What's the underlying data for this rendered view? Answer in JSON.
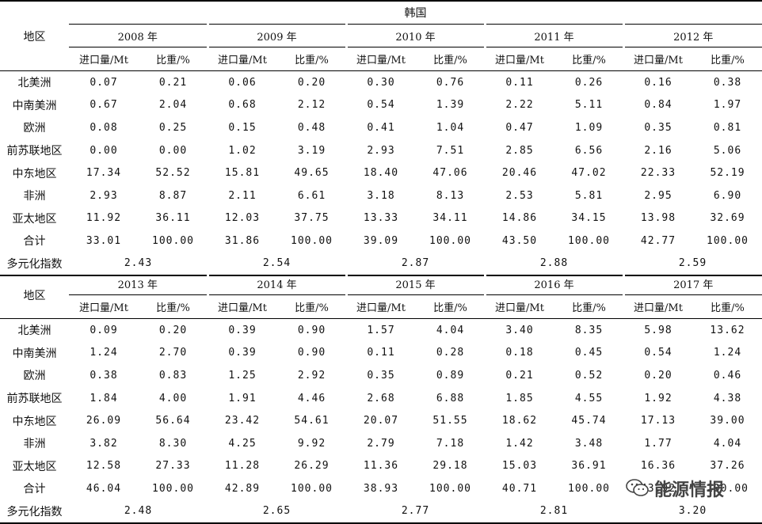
{
  "table1": {
    "country": "韩国",
    "region_header": "地区",
    "years": [
      "2008 年",
      "2009 年",
      "2010 年",
      "2011 年",
      "2012 年"
    ],
    "col_import": "进口量/Mt",
    "col_share": "比重/%",
    "rows": [
      {
        "region": "北美洲",
        "values": [
          "0.07",
          "0.21",
          "0.06",
          "0.20",
          "0.30",
          "0.76",
          "0.11",
          "0.26",
          "0.16",
          "0.38"
        ]
      },
      {
        "region": "中南美洲",
        "values": [
          "0.67",
          "2.04",
          "0.68",
          "2.12",
          "0.54",
          "1.39",
          "2.22",
          "5.11",
          "0.84",
          "1.97"
        ]
      },
      {
        "region": "欧洲",
        "values": [
          "0.08",
          "0.25",
          "0.15",
          "0.48",
          "0.41",
          "1.04",
          "0.47",
          "1.09",
          "0.35",
          "0.81"
        ]
      },
      {
        "region": "前苏联地区",
        "values": [
          "0.00",
          "0.00",
          "1.02",
          "3.19",
          "2.93",
          "7.51",
          "2.85",
          "6.56",
          "2.16",
          "5.06"
        ]
      },
      {
        "region": "中东地区",
        "values": [
          "17.34",
          "52.52",
          "15.81",
          "49.65",
          "18.40",
          "47.06",
          "20.46",
          "47.02",
          "22.33",
          "52.19"
        ]
      },
      {
        "region": "非洲",
        "values": [
          "2.93",
          "8.87",
          "2.11",
          "6.61",
          "3.18",
          "8.13",
          "2.53",
          "5.81",
          "2.95",
          "6.90"
        ]
      },
      {
        "region": "亚太地区",
        "values": [
          "11.92",
          "36.11",
          "12.03",
          "37.75",
          "13.33",
          "34.11",
          "14.86",
          "34.15",
          "13.98",
          "32.69"
        ]
      },
      {
        "region": "合计",
        "values": [
          "33.01",
          "100.00",
          "31.86",
          "100.00",
          "39.09",
          "100.00",
          "43.50",
          "100.00",
          "42.77",
          "100.00"
        ]
      }
    ],
    "diversity_label": "多元化指数",
    "diversity": [
      "2.43",
      "2.54",
      "2.87",
      "2.88",
      "2.59"
    ]
  },
  "table2": {
    "region_header": "地区",
    "years": [
      "2013 年",
      "2014 年",
      "2015 年",
      "2016 年",
      "2017 年"
    ],
    "col_import": "进口量/Mt",
    "col_share": "比重/%",
    "rows": [
      {
        "region": "北美洲",
        "values": [
          "0.09",
          "0.20",
          "0.39",
          "0.90",
          "1.57",
          "4.04",
          "3.40",
          "8.35",
          "5.98",
          "13.62"
        ]
      },
      {
        "region": "中南美洲",
        "values": [
          "1.24",
          "2.70",
          "0.39",
          "0.90",
          "0.11",
          "0.28",
          "0.18",
          "0.45",
          "0.54",
          "1.24"
        ]
      },
      {
        "region": "欧洲",
        "values": [
          "0.38",
          "0.83",
          "1.25",
          "2.92",
          "0.35",
          "0.89",
          "0.21",
          "0.52",
          "0.20",
          "0.46"
        ]
      },
      {
        "region": "前苏联地区",
        "values": [
          "1.84",
          "4.00",
          "1.91",
          "4.46",
          "2.68",
          "6.88",
          "1.85",
          "4.55",
          "1.92",
          "4.38"
        ]
      },
      {
        "region": "中东地区",
        "values": [
          "26.09",
          "56.64",
          "23.42",
          "54.61",
          "20.07",
          "51.55",
          "18.62",
          "45.74",
          "17.13",
          "39.00"
        ]
      },
      {
        "region": "非洲",
        "values": [
          "3.82",
          "8.30",
          "4.25",
          "9.92",
          "2.79",
          "7.18",
          "1.42",
          "3.48",
          "1.77",
          "4.04"
        ]
      },
      {
        "region": "亚太地区",
        "values": [
          "12.58",
          "27.33",
          "11.28",
          "26.29",
          "11.36",
          "29.18",
          "15.03",
          "36.91",
          "16.36",
          "37.26"
        ]
      },
      {
        "region": "合计",
        "values": [
          "46.04",
          "100.00",
          "42.89",
          "100.00",
          "38.93",
          "100.00",
          "40.71",
          "100.00",
          "43.92",
          "100.00"
        ]
      }
    ],
    "diversity_label": "多元化指数",
    "diversity": [
      "2.48",
      "2.65",
      "2.77",
      "2.81",
      "3.20"
    ]
  },
  "watermark": {
    "text": "能源情报",
    "icon": "wechat-icon"
  }
}
